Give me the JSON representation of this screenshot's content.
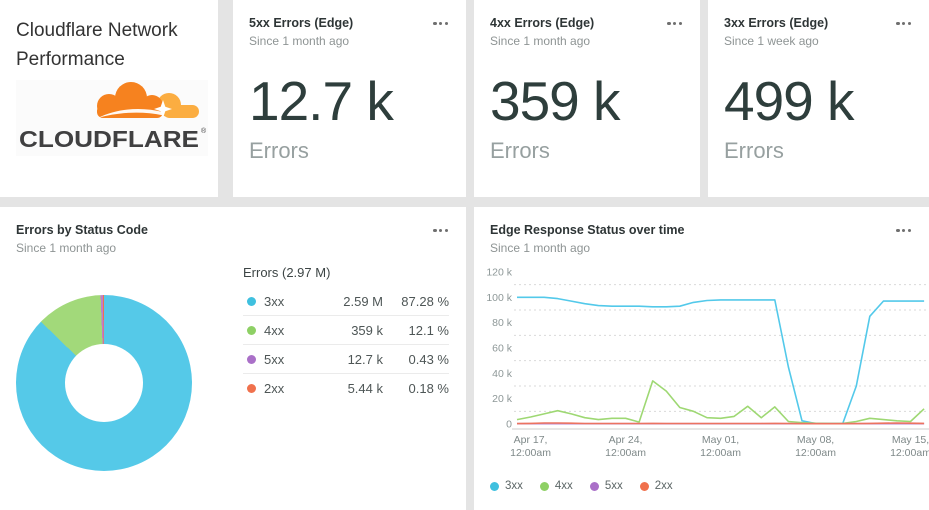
{
  "title_card": {
    "title": "Cloudflare Network Performance",
    "logo_text": "CLOUDFLARE"
  },
  "metric_cards": [
    {
      "title": "5xx Errors (Edge)",
      "subtitle": "Since 1 month ago",
      "value": "12.7 k",
      "unit": "Errors"
    },
    {
      "title": "4xx Errors (Edge)",
      "subtitle": "Since 1 month ago",
      "value": "359 k",
      "unit": "Errors"
    },
    {
      "title": "3xx Errors (Edge)",
      "subtitle": "Since 1 week ago",
      "value": "499 k",
      "unit": "Errors"
    }
  ],
  "colors": {
    "cloudflare_orange": "#f6821f",
    "cloudflare_orange_light": "#fbad41",
    "logo_text_color": "#404041"
  },
  "chart_data": [
    {
      "type": "pie",
      "donut": true,
      "title": "Errors by Status Code",
      "subtitle": "Since 1 month ago",
      "legend_title": "Errors (2.97 M)",
      "slices": [
        {
          "label": "3xx",
          "display_value": "2.59 M",
          "display_pct": "87.28 %",
          "pct": 87.28,
          "color": "#55c9e8",
          "dot_color": "#3fc0df"
        },
        {
          "label": "4xx",
          "display_value": "359 k",
          "display_pct": "12.1 %",
          "pct": 12.1,
          "color": "#a2d97a",
          "dot_color": "#8ed065"
        },
        {
          "label": "5xx",
          "display_value": "12.7 k",
          "display_pct": "0.43 %",
          "pct": 0.43,
          "color": "#c07dc8",
          "dot_color": "#aa70c8"
        },
        {
          "label": "2xx",
          "display_value": "5.44 k",
          "display_pct": "0.18 %",
          "pct": 0.18,
          "color": "#f0714d",
          "dot_color": "#f0714d"
        }
      ]
    },
    {
      "type": "line",
      "title": "Edge Response Status over time",
      "subtitle": "Since 1 month ago",
      "ylim_k": [
        0,
        120
      ],
      "y_ticks": [
        "0",
        "20 k",
        "40 k",
        "60 k",
        "80 k",
        "100 k",
        "120 k"
      ],
      "x_ticks": [
        {
          "day": 1,
          "line1": "Apr 17,",
          "line2": "12:00am"
        },
        {
          "day": 8,
          "line1": "Apr 24,",
          "line2": "12:00am"
        },
        {
          "day": 15,
          "line1": "May 01,",
          "line2": "12:00am"
        },
        {
          "day": 22,
          "line1": "May 08,",
          "line2": "12:00am"
        },
        {
          "day": 29,
          "line1": "May 15,",
          "line2": "12:00am"
        }
      ],
      "grid": "dashed-minor-10k",
      "legend_position": "bottom-left",
      "series": [
        {
          "name": "3xx",
          "color": "#53c9ea",
          "dot_color": "#3fc0df",
          "values_k": [
            100,
            100,
            100,
            99,
            97,
            95,
            93.5,
            93,
            93,
            93,
            92.5,
            92.5,
            93,
            96,
            97.5,
            98,
            98,
            98,
            98,
            98,
            45,
            2.5,
            0.4,
            0.3,
            0.3,
            30,
            85,
            97,
            97,
            97,
            97
          ]
        },
        {
          "name": "4xx",
          "color": "#9ed873",
          "dot_color": "#8ed065",
          "values_k": [
            3.5,
            5.5,
            8,
            10.5,
            8,
            5,
            3.5,
            4.5,
            4.5,
            1.5,
            34,
            26,
            13,
            10,
            5,
            4.5,
            6,
            14,
            5,
            13.5,
            2,
            1,
            0.6,
            0.5,
            0.5,
            2,
            4.5,
            3.5,
            2.5,
            2,
            12
          ]
        },
        {
          "name": "5xx",
          "color": "#bb86cd",
          "dot_color": "#aa70c8",
          "values_k": [
            0.2,
            0.2,
            0.2,
            0.2,
            0.2,
            0.2,
            0.2,
            0.2,
            0.2,
            0.2,
            0.2,
            0.2,
            0.2,
            0.2,
            0.2,
            0.2,
            0.2,
            0.2,
            0.2,
            0.2,
            0.2,
            0.2,
            0.2,
            0.2,
            0.2,
            0.2,
            0.2,
            0.2,
            0.2,
            0.2,
            0.2
          ]
        },
        {
          "name": "2xx",
          "color": "#ec7360",
          "dot_color": "#f0714d",
          "values_k": [
            0.3,
            0.5,
            0.8,
            0.8,
            0.6,
            0.4,
            0.4,
            0.4,
            0.4,
            0.4,
            0.5,
            0.4,
            0.4,
            0.4,
            0.4,
            0.4,
            0.4,
            0.4,
            0.4,
            0.5,
            0.4,
            0.2,
            0.2,
            0.2,
            0.2,
            0.3,
            0.5,
            0.6,
            0.8,
            0.6,
            0.5
          ]
        }
      ]
    }
  ]
}
